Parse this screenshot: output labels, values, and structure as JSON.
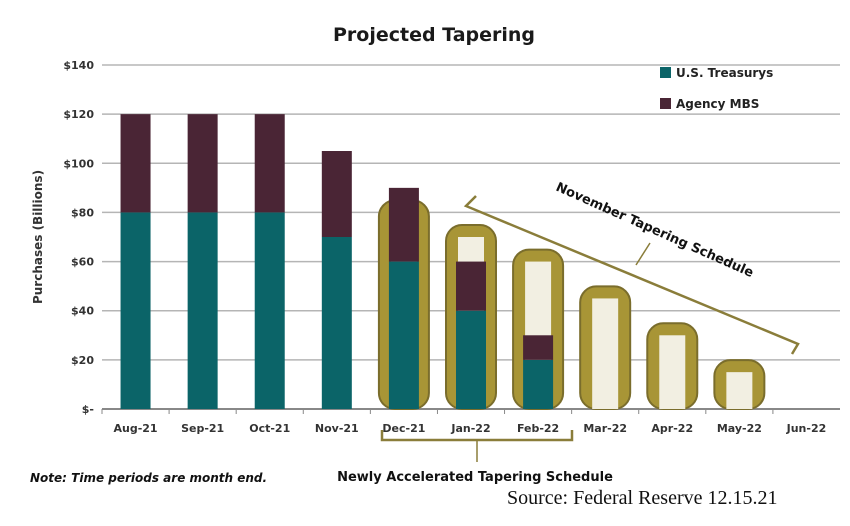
{
  "chart_data": {
    "type": "bar",
    "stacked": true,
    "title": "Projected Tapering",
    "ylabel": "Purchases (Billions)",
    "xlabel": "",
    "ylim": [
      0,
      140
    ],
    "y_ticks": [
      "$-",
      "$20",
      "$40",
      "$60",
      "$80",
      "$100",
      "$120",
      "$140"
    ],
    "grid": true,
    "legend_position": "top-right",
    "categories": [
      "Aug-21",
      "Sep-21",
      "Oct-21",
      "Nov-21",
      "Dec-21",
      "Jan-22",
      "Feb-22",
      "Mar-22",
      "Apr-22",
      "May-22",
      "Jun-22"
    ],
    "series": [
      {
        "name": "U.S. Treasurys",
        "color": "#0b6468",
        "values": [
          80,
          80,
          80,
          70,
          60,
          40,
          20,
          0,
          0,
          0,
          0
        ]
      },
      {
        "name": "Agency MBS",
        "color": "#4a2535",
        "values": [
          40,
          40,
          40,
          35,
          30,
          20,
          10,
          0,
          0,
          0,
          0
        ]
      }
    ],
    "november_schedule": {
      "label": "November Tapering Schedule",
      "color": "#a89536",
      "values": [
        null,
        null,
        null,
        null,
        80,
        70,
        60,
        45,
        30,
        15,
        0
      ]
    },
    "annotations": [
      "November Tapering Schedule",
      "Newly Accelerated Tapering Schedule"
    ]
  },
  "note": "Note: Time periods are month end.",
  "source": "Source: Federal Reserve 12.15.21"
}
